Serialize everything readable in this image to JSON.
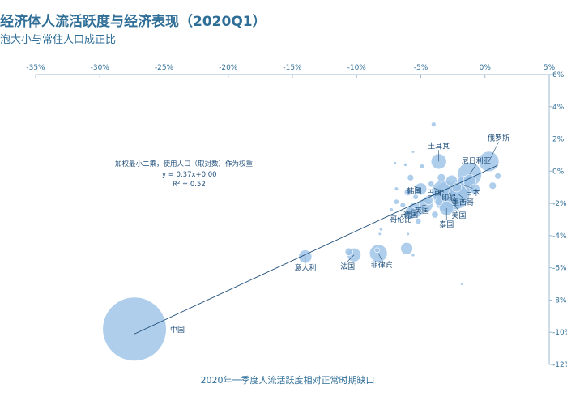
{
  "header": {
    "title": "经济体人流活跃度与经济表现（2020Q1）",
    "subtitle": "泡大小与常住人口成正比"
  },
  "chart_data": {
    "type": "scatter",
    "title": "经济体人流活跃度与经济表现（2020Q1）",
    "subtitle": "泡大小与常住人口成正比",
    "xlabel": "2020年一季度人流活跃度相对正常时期缺口",
    "ylabel": "",
    "xlim": [
      -35,
      5
    ],
    "ylim": [
      -12,
      6
    ],
    "x_ticks": [
      "-35%",
      "-30%",
      "-25%",
      "-20%",
      "-15%",
      "-10%",
      "-5%",
      "0%",
      "5%"
    ],
    "y_ticks": [
      "6%",
      "4%",
      "2%",
      "0%",
      "-2%",
      "-4%",
      "-6%",
      "-8%",
      "-10%",
      "-12%"
    ],
    "annotation": [
      "加权最小二乘，使用人口（取对数）作为权重",
      "y = 0.37x+0.00",
      "R² = 0.52"
    ],
    "trendline": {
      "slope": 0.37,
      "intercept": 0.0,
      "from_x": -27.3,
      "to_x": 1.0
    },
    "color": "#9dc3e6",
    "labeled_points": [
      {
        "name": "中国",
        "x": -27.3,
        "y": -9.8,
        "size": 1400
      },
      {
        "name": "意大利",
        "x": -14.0,
        "y": -5.3,
        "size": 60
      },
      {
        "name": "法国",
        "x": -10.2,
        "y": -5.2,
        "size": 65
      },
      {
        "name": "菲律宾",
        "x": -8.3,
        "y": -5.1,
        "size": 108
      },
      {
        "name": "土耳其",
        "x": -3.6,
        "y": 0.6,
        "size": 82
      },
      {
        "name": "印尼",
        "x": -2.3,
        "y": -1.5,
        "size": 270
      },
      {
        "name": "俄罗斯",
        "x": 0.3,
        "y": 0.6,
        "size": 140
      },
      {
        "name": "尼日利亚",
        "x": -1.2,
        "y": -0.2,
        "size": 200
      },
      {
        "name": "巴西",
        "x": -3.2,
        "y": -1.3,
        "size": 210
      },
      {
        "name": "韩国",
        "x": -5.0,
        "y": -1.1,
        "size": 50
      },
      {
        "name": "日本",
        "x": -1.6,
        "y": -0.9,
        "size": 125
      },
      {
        "name": "墨西哥",
        "x": -2.1,
        "y": -1.4,
        "size": 125
      },
      {
        "name": "美国",
        "x": -2.8,
        "y": -1.6,
        "size": 330
      },
      {
        "name": "泰国",
        "x": -3.0,
        "y": -2.3,
        "size": 70
      },
      {
        "name": "英国",
        "x": -4.6,
        "y": -2.1,
        "size": 65
      },
      {
        "name": "德国",
        "x": -5.4,
        "y": -2.4,
        "size": 80
      },
      {
        "name": "哥伦比",
        "x": -5.8,
        "y": -2.6,
        "size": 50
      }
    ],
    "points": [
      {
        "x": -4.0,
        "y": 2.9,
        "size": 8
      },
      {
        "x": -5.6,
        "y": 1.2,
        "size": 3
      },
      {
        "x": -6.2,
        "y": 0.4,
        "size": 4
      },
      {
        "x": -7.0,
        "y": 0.5,
        "size": 3
      },
      {
        "x": -4.9,
        "y": 0.3,
        "size": 7
      },
      {
        "x": -5.8,
        "y": -0.4,
        "size": 14
      },
      {
        "x": -6.0,
        "y": -1.3,
        "size": 18
      },
      {
        "x": -6.9,
        "y": -1.9,
        "size": 9
      },
      {
        "x": -7.3,
        "y": -2.4,
        "size": 5
      },
      {
        "x": -6.4,
        "y": -2.1,
        "size": 10
      },
      {
        "x": -4.2,
        "y": -0.8,
        "size": 12
      },
      {
        "x": -3.9,
        "y": -2.7,
        "size": 16
      },
      {
        "x": -5.2,
        "y": -3.1,
        "size": 12
      },
      {
        "x": -6.7,
        "y": -3.0,
        "size": 4
      },
      {
        "x": -8.1,
        "y": -3.6,
        "size": 4
      },
      {
        "x": -6.0,
        "y": -3.9,
        "size": 3
      },
      {
        "x": -6.1,
        "y": -4.8,
        "size": 50
      },
      {
        "x": -5.6,
        "y": -5.2,
        "size": 4
      },
      {
        "x": -10.6,
        "y": -5.0,
        "size": 20
      },
      {
        "x": -8.4,
        "y": -4.9,
        "size": 8
      },
      {
        "x": -8.2,
        "y": -3.9,
        "size": 3
      },
      {
        "x": 1.0,
        "y": -0.3,
        "size": 14
      },
      {
        "x": 0.6,
        "y": -0.9,
        "size": 18
      },
      {
        "x": -0.8,
        "y": -1.1,
        "size": 35
      },
      {
        "x": -1.2,
        "y": -0.6,
        "size": 55
      },
      {
        "x": -3.4,
        "y": -0.4,
        "size": 22
      },
      {
        "x": -4.4,
        "y": -1.8,
        "size": 28
      },
      {
        "x": -2.2,
        "y": -1.0,
        "size": 30
      },
      {
        "x": -5.4,
        "y": -1.6,
        "size": 10
      },
      {
        "x": -3.6,
        "y": -1.9,
        "size": 20
      },
      {
        "x": -2.6,
        "y": -0.6,
        "size": 45
      },
      {
        "x": -6.9,
        "y": -1.1,
        "size": 5
      },
      {
        "x": -1.8,
        "y": -7.0,
        "size": 3
      }
    ]
  }
}
